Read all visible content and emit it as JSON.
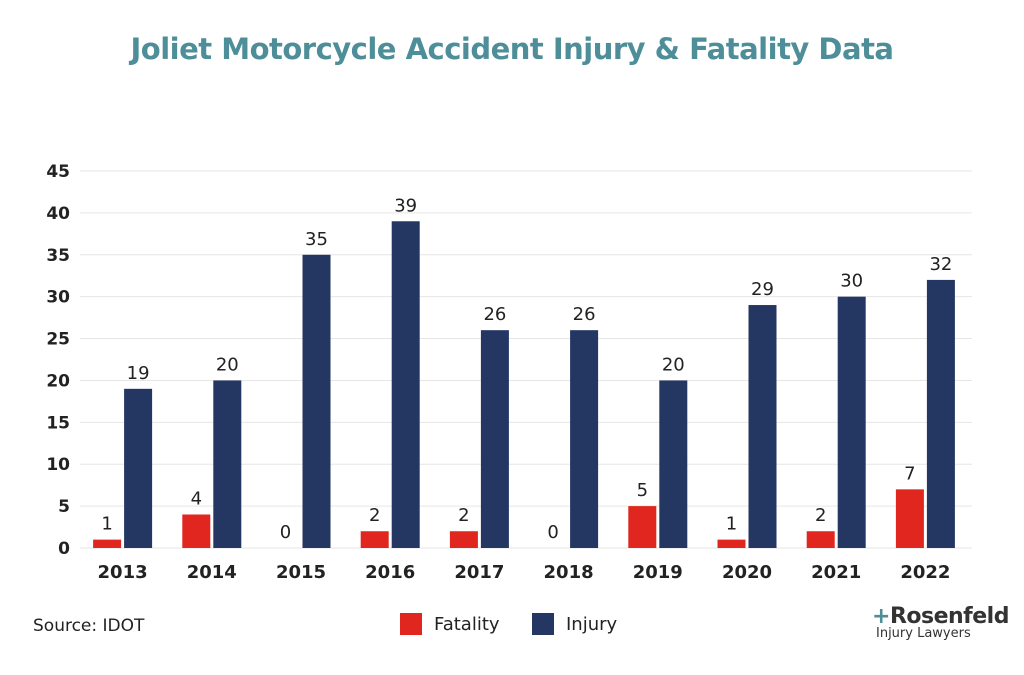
{
  "chart_data": {
    "type": "bar",
    "title": "Joliet Motorcycle Accident Injury & Fatality Data",
    "categories": [
      "2013",
      "2014",
      "2015",
      "2016",
      "2017",
      "2018",
      "2019",
      "2020",
      "2021",
      "2022"
    ],
    "series": [
      {
        "name": "Fatality",
        "color": "#e0261f",
        "values": [
          1,
          4,
          0,
          2,
          2,
          0,
          5,
          1,
          2,
          7
        ]
      },
      {
        "name": "Injury",
        "color": "#243662",
        "values": [
          19,
          20,
          35,
          39,
          26,
          26,
          20,
          29,
          30,
          32
        ]
      }
    ],
    "yticks": [
      0,
      5,
      10,
      15,
      20,
      25,
      30,
      35,
      40,
      45
    ],
    "ylim": [
      0,
      45
    ],
    "grid": true,
    "legend": "bottom",
    "source": "Source: IDOT"
  },
  "logo": {
    "name": "Rosenfeld",
    "tagline": "Injury Lawyers"
  }
}
